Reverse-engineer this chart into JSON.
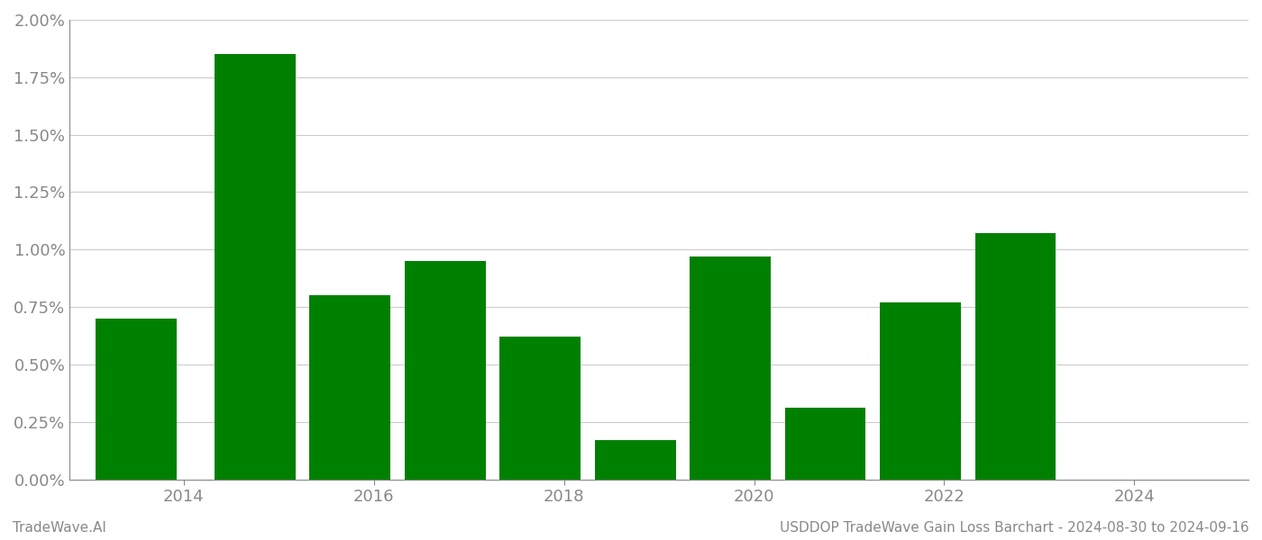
{
  "bar_centers": [
    2013.5,
    2014.75,
    2015.75,
    2016.75,
    2017.75,
    2018.75,
    2019.75,
    2020.75,
    2021.75,
    2022.75
  ],
  "values": [
    0.007,
    0.0185,
    0.008,
    0.0095,
    0.0062,
    0.0017,
    0.0097,
    0.0031,
    0.0077,
    0.0107
  ],
  "bar_color": "#008000",
  "background_color": "#ffffff",
  "ylabel_color": "#888888",
  "xlabel_color": "#888888",
  "grid_color": "#cccccc",
  "axis_color": "#888888",
  "ylim": [
    0,
    0.02
  ],
  "yticks": [
    0.0,
    0.0025,
    0.005,
    0.0075,
    0.01,
    0.0125,
    0.015,
    0.0175,
    0.02
  ],
  "xtick_labels": [
    "2014",
    "2016",
    "2018",
    "2020",
    "2022",
    "2024"
  ],
  "xtick_positions": [
    2014,
    2016,
    2018,
    2020,
    2022,
    2024
  ],
  "xlim": [
    2012.8,
    2025.2
  ],
  "footer_left": "TradeWave.AI",
  "footer_right": "USDDOP TradeWave Gain Loss Barchart - 2024-08-30 to 2024-09-16",
  "footer_color": "#888888",
  "bar_width": 0.85
}
